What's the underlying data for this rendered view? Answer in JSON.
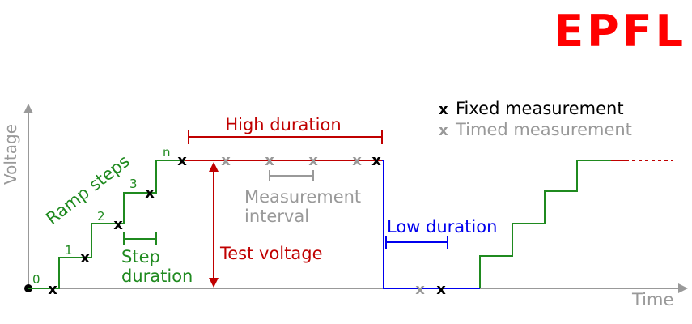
{
  "logo": {
    "text": "EPFL",
    "color": "#ff0000"
  },
  "axes": {
    "x_label": "Time",
    "y_label": "Voltage",
    "color": "#999999"
  },
  "legend": {
    "fixed_marker": "x",
    "fixed_label": "Fixed measurement",
    "timed_marker": "x",
    "timed_label": "Timed measurement"
  },
  "ramp": {
    "title": "Ramp steps",
    "step_labels": [
      "0",
      "1",
      "2",
      "3",
      "n"
    ],
    "step_duration_line1": "Step",
    "step_duration_line2": "duration"
  },
  "high": {
    "duration_label": "High duration",
    "test_voltage_label": "Test voltage",
    "measurement_interval_line1": "Measurement",
    "measurement_interval_line2": "interval"
  },
  "low": {
    "duration_label": "Low duration"
  },
  "colors": {
    "ramp": "#1f8a1f",
    "high": "#c00000",
    "low": "#0000ee",
    "fixed_marker": "#000000",
    "timed_marker": "#999999",
    "axis": "#999999"
  }
}
